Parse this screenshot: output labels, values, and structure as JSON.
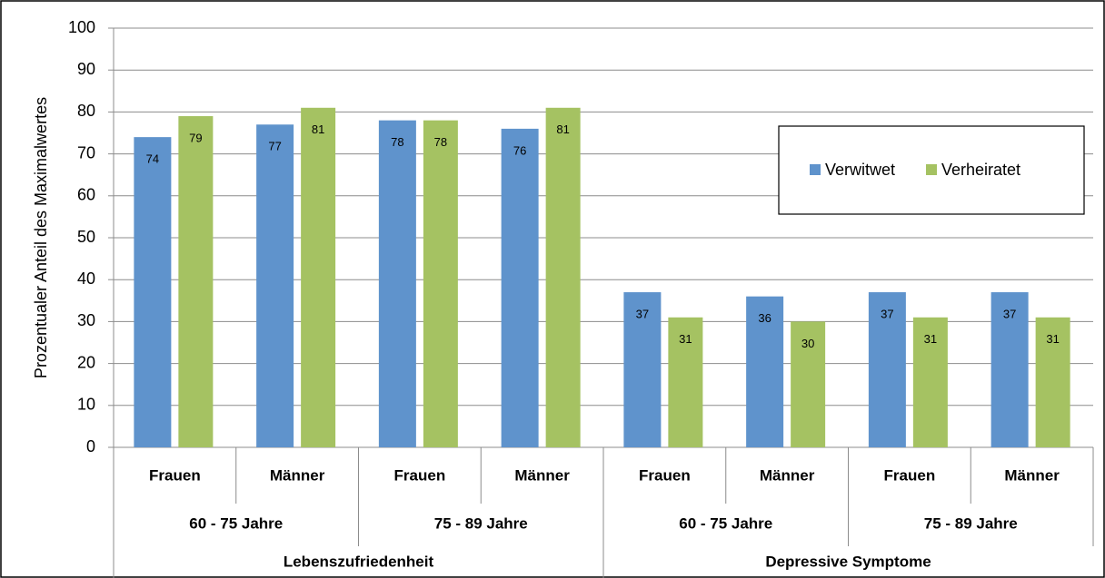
{
  "chart_data": {
    "type": "bar",
    "y_axis_label": "Prozentualer Anteil des Maximalwertes",
    "groups": [
      {
        "name": "Lebenszufriedenheit",
        "subgroups": [
          {
            "name": "60 - 75 Jahre",
            "categories": [
              "Frauen",
              "Männer"
            ]
          },
          {
            "name": "75 - 89 Jahre",
            "categories": [
              "Frauen",
              "Männer"
            ]
          }
        ]
      },
      {
        "name": "Depressive Symptome",
        "subgroups": [
          {
            "name": "60 - 75 Jahre",
            "categories": [
              "Frauen",
              "Männer"
            ]
          },
          {
            "name": "75 - 89 Jahre",
            "categories": [
              "Frauen",
              "Männer"
            ]
          }
        ]
      }
    ],
    "series": [
      {
        "name": "Verwitwet",
        "color": "#5f93cc",
        "values": [
          74,
          77,
          78,
          76,
          37,
          36,
          37,
          37
        ]
      },
      {
        "name": "Verheiratet",
        "color": "#a5c262",
        "values": [
          79,
          81,
          78,
          81,
          31,
          30,
          31,
          31
        ]
      }
    ],
    "ylim": [
      0,
      100
    ],
    "yticks": [
      0,
      10,
      20,
      30,
      40,
      50,
      60,
      70,
      80,
      90,
      100
    ],
    "grid": true,
    "legend": "right"
  }
}
